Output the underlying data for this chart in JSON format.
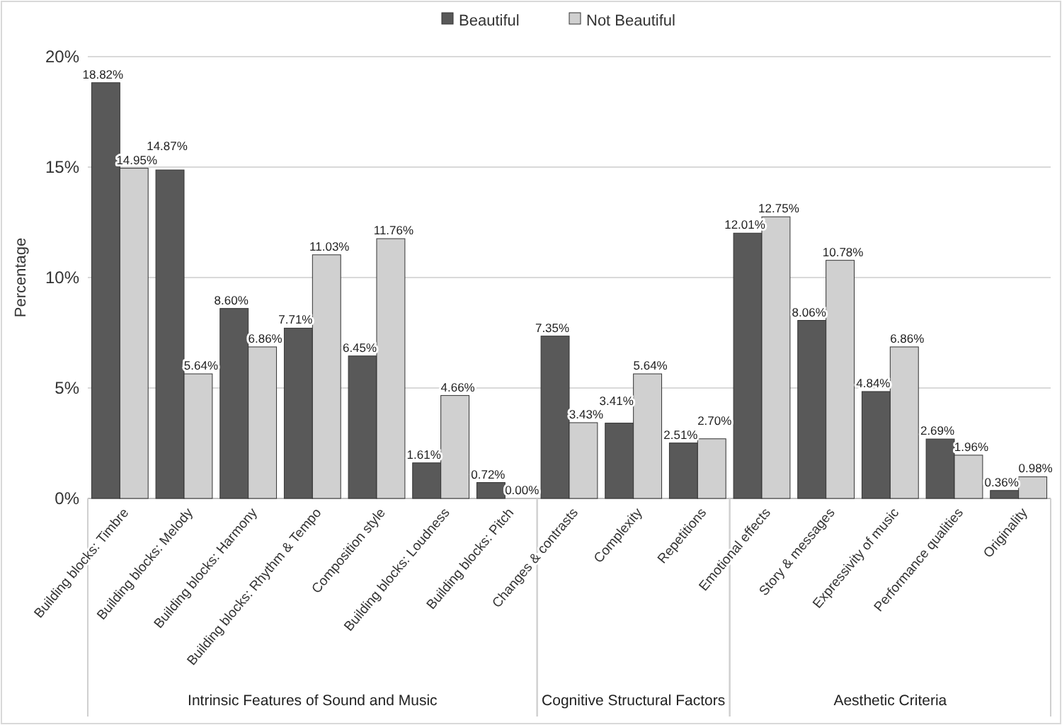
{
  "chart_data": {
    "type": "bar",
    "ylabel": "Percentage",
    "categories": [
      "Building blocks: Timbre",
      "Building blocks: Melody",
      "Building blocks: Harmony",
      "Building blocks: Rhythm & Tempo",
      "Composition style",
      "Building blocks: Loudness",
      "Building blocks: Pitch",
      "Changes & contrasts",
      "Complexity",
      "Repetitions",
      "Emotional effects",
      "Story & messages",
      "Expressivity of music",
      "Performance qualities",
      "Originality"
    ],
    "series": [
      {
        "name": "Beautiful",
        "color": "#595959",
        "values": [
          18.82,
          14.87,
          8.6,
          7.71,
          6.45,
          1.61,
          0.72,
          7.35,
          3.41,
          2.51,
          12.01,
          8.06,
          4.84,
          2.69,
          0.36
        ],
        "value_labels": [
          "18.82%",
          "14.87%",
          "8.60%",
          "7.71%",
          "6.45%",
          "1.61%",
          "0.72%",
          "7.35%",
          "3.41%",
          "2.51%",
          "12.01%",
          "8.06%",
          "4.84%",
          "2.69%",
          "0.36%"
        ]
      },
      {
        "name": "Not Beautiful",
        "color": "#d0d0d0",
        "values": [
          14.95,
          5.64,
          6.86,
          11.03,
          11.76,
          4.66,
          0.0,
          3.43,
          5.64,
          2.7,
          12.75,
          10.78,
          6.86,
          1.96,
          0.98
        ],
        "value_labels": [
          "14.95%",
          "5.64%",
          "6.86%",
          "11.03%",
          "11.76%",
          "4.66%",
          "0.00%",
          "3.43%",
          "5.64%",
          "2.70%",
          "12.75%",
          "10.78%",
          "6.86%",
          "1.96%",
          "0.98%"
        ]
      }
    ],
    "ylim": [
      0,
      20
    ],
    "yticks": [
      {
        "value": 0,
        "label": "0%"
      },
      {
        "value": 5,
        "label": "5%"
      },
      {
        "value": 10,
        "label": "10%"
      },
      {
        "value": 15,
        "label": "15%"
      },
      {
        "value": 20,
        "label": "20%"
      }
    ],
    "grid": "y",
    "legend": "top",
    "annotations": [
      "Intrinsic Features of Sound and Music",
      "Cognitive Structural Factors",
      "Aesthetic Criteria"
    ]
  }
}
